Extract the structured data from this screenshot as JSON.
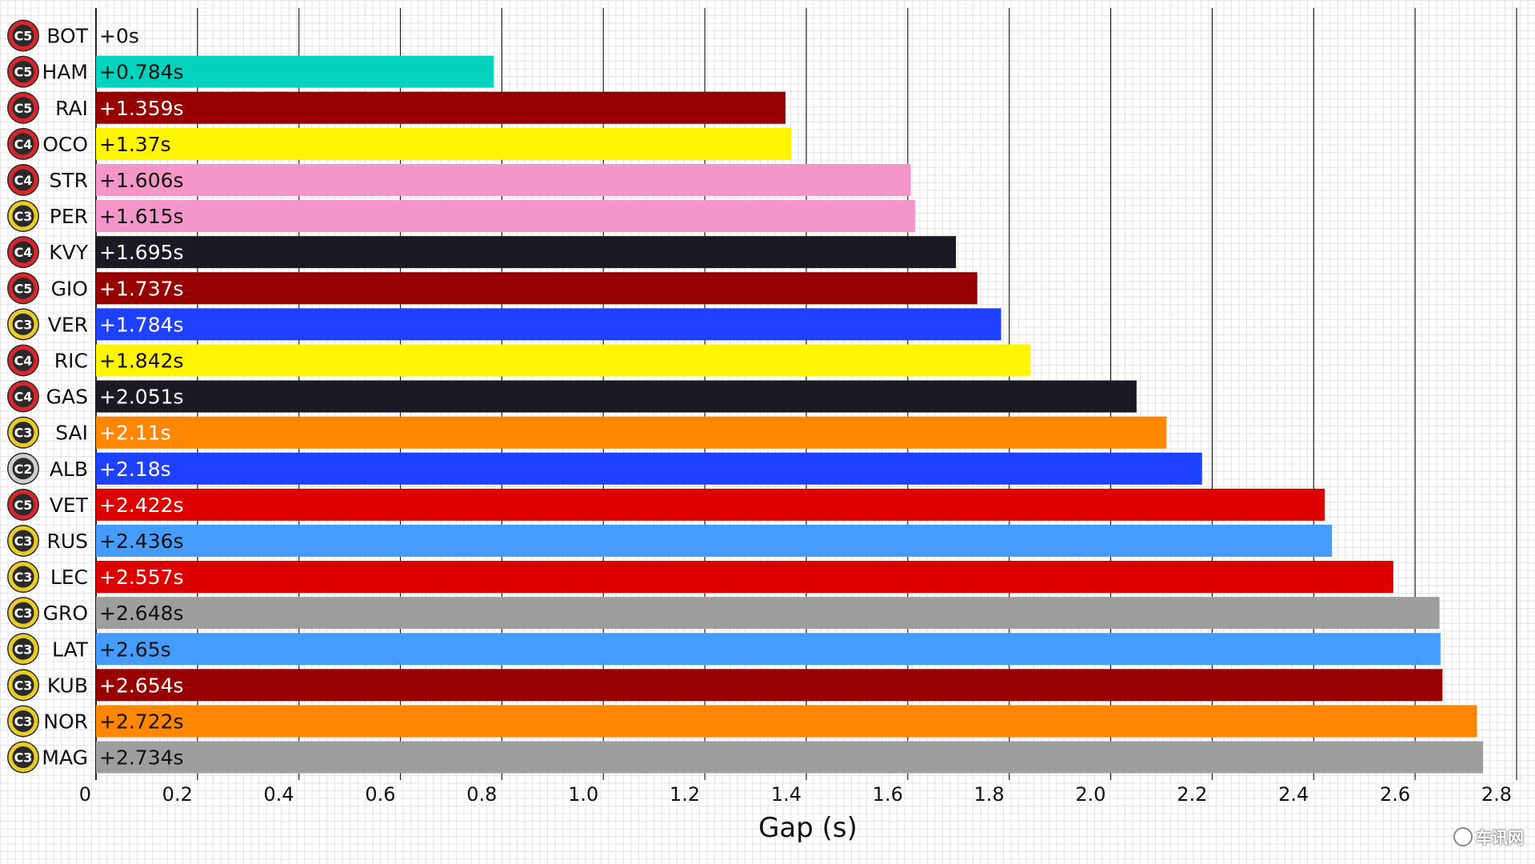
{
  "chart_data": {
    "type": "bar",
    "orientation": "horizontal",
    "xlabel": "Gap (s)",
    "xlim": [
      0,
      2.8
    ],
    "x_ticks": [
      "0",
      "0.2",
      "0.4",
      "0.6",
      "0.8",
      "1.0",
      "1.2",
      "1.4",
      "1.6",
      "1.8",
      "2.0",
      "2.2",
      "2.4",
      "2.6",
      "2.8"
    ],
    "grid": true,
    "tyre_colors": {
      "C2": "#cfcfcf",
      "C3": "#e8cc2a",
      "C4": "#d8262c",
      "C5": "#d8262c"
    },
    "drivers": [
      {
        "name": "BOT",
        "tyre": "C5",
        "value": 0,
        "label": "+0s",
        "color": "#ffffff",
        "text_color": "#111111"
      },
      {
        "name": "HAM",
        "tyre": "C5",
        "value": 0.784,
        "label": "+0.784s",
        "color": "#00d2be",
        "text_color": "#111111"
      },
      {
        "name": "RAI",
        "tyre": "C5",
        "value": 1.359,
        "label": "+1.359s",
        "color": "#960000",
        "text_color": "#ffffff"
      },
      {
        "name": "OCO",
        "tyre": "C4",
        "value": 1.37,
        "label": "+1.37s",
        "color": "#fff500",
        "text_color": "#111111"
      },
      {
        "name": "STR",
        "tyre": "C4",
        "value": 1.606,
        "label": "+1.606s",
        "color": "#f596c8",
        "text_color": "#111111"
      },
      {
        "name": "PER",
        "tyre": "C3",
        "value": 1.615,
        "label": "+1.615s",
        "color": "#f596c8",
        "text_color": "#111111"
      },
      {
        "name": "KVY",
        "tyre": "C4",
        "value": 1.695,
        "label": "+1.695s",
        "color": "#1a1a24",
        "text_color": "#ffffff"
      },
      {
        "name": "GIO",
        "tyre": "C5",
        "value": 1.737,
        "label": "+1.737s",
        "color": "#960000",
        "text_color": "#ffffff"
      },
      {
        "name": "VER",
        "tyre": "C3",
        "value": 1.784,
        "label": "+1.784s",
        "color": "#1e41ff",
        "text_color": "#ffffff"
      },
      {
        "name": "RIC",
        "tyre": "C4",
        "value": 1.842,
        "label": "+1.842s",
        "color": "#fff500",
        "text_color": "#111111"
      },
      {
        "name": "GAS",
        "tyre": "C4",
        "value": 2.051,
        "label": "+2.051s",
        "color": "#1a1a24",
        "text_color": "#ffffff"
      },
      {
        "name": "SAI",
        "tyre": "C3",
        "value": 2.11,
        "label": "+2.11s",
        "color": "#ff8700",
        "text_color": "#ffffff"
      },
      {
        "name": "ALB",
        "tyre": "C2",
        "value": 2.18,
        "label": "+2.18s",
        "color": "#1e41ff",
        "text_color": "#ffffff"
      },
      {
        "name": "VET",
        "tyre": "C5",
        "value": 2.422,
        "label": "+2.422s",
        "color": "#dc0000",
        "text_color": "#ffffff"
      },
      {
        "name": "RUS",
        "tyre": "C3",
        "value": 2.436,
        "label": "+2.436s",
        "color": "#469bff",
        "text_color": "#111111"
      },
      {
        "name": "LEC",
        "tyre": "C3",
        "value": 2.557,
        "label": "+2.557s",
        "color": "#dc0000",
        "text_color": "#ffffff"
      },
      {
        "name": "GRO",
        "tyre": "C3",
        "value": 2.648,
        "label": "+2.648s",
        "color": "#9e9e9e",
        "text_color": "#111111"
      },
      {
        "name": "LAT",
        "tyre": "C3",
        "value": 2.65,
        "label": "+2.65s",
        "color": "#469bff",
        "text_color": "#111111"
      },
      {
        "name": "KUB",
        "tyre": "C3",
        "value": 2.654,
        "label": "+2.654s",
        "color": "#960000",
        "text_color": "#ffffff"
      },
      {
        "name": "NOR",
        "tyre": "C3",
        "value": 2.722,
        "label": "+2.722s",
        "color": "#ff8700",
        "text_color": "#111111"
      },
      {
        "name": "MAG",
        "tyre": "C3",
        "value": 2.734,
        "label": "+2.734s",
        "color": "#9e9e9e",
        "text_color": "#111111"
      }
    ]
  },
  "watermark": {
    "text": "车讯网"
  }
}
